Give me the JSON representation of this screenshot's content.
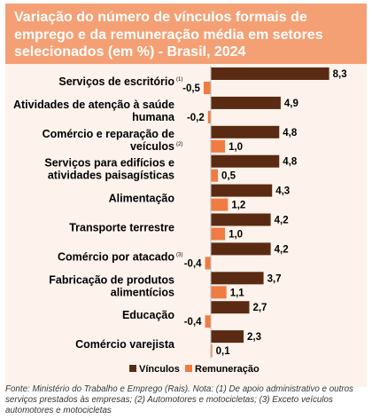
{
  "header": {
    "title": "Variação do número de vínculos formais de emprego e da remuneração média em setores selecionados (em %) - Brasil, 2024"
  },
  "colors": {
    "header_bg": "#f4a074",
    "chart_bg": "#fdf3ec",
    "vinculos": "#5b2a12",
    "remuneracao": "#f07b43"
  },
  "chart_data": {
    "type": "bar",
    "orientation": "horizontal",
    "categories": [
      {
        "lines": [
          "Serviços de escritório"
        ],
        "note": "(1)"
      },
      {
        "lines": [
          "Atividades de atenção à saúde",
          "humana"
        ],
        "note": ""
      },
      {
        "lines": [
          "Comércio e reparação de",
          "veículos"
        ],
        "note": "(2)"
      },
      {
        "lines": [
          "Serviços para edifícios e",
          "atividades paisagísticas"
        ],
        "note": ""
      },
      {
        "lines": [
          "Alimentação"
        ],
        "note": ""
      },
      {
        "lines": [
          "Transporte terrestre"
        ],
        "note": ""
      },
      {
        "lines": [
          "Comércio por atacado"
        ],
        "note": "(3)"
      },
      {
        "lines": [
          "Fabricação de produtos",
          "alimentícios"
        ],
        "note": ""
      },
      {
        "lines": [
          "Educação"
        ],
        "note": ""
      },
      {
        "lines": [
          "Comércio varejista"
        ],
        "note": ""
      }
    ],
    "series": [
      {
        "name": "Vínculos",
        "values": [
          8.3,
          4.9,
          4.8,
          4.8,
          4.3,
          4.2,
          4.2,
          3.7,
          2.7,
          2.3
        ],
        "labels": [
          "8,3",
          "4,9",
          "4,8",
          "4,8",
          "4,3",
          "4,2",
          "4,2",
          "3,7",
          "2,7",
          "2,3"
        ]
      },
      {
        "name": "Remuneração",
        "values": [
          -0.5,
          -0.2,
          1.0,
          0.5,
          1.2,
          1.0,
          -0.4,
          1.1,
          -0.4,
          0.1
        ],
        "labels": [
          "-0,5",
          "-0,2",
          "1,0",
          "0,5",
          "1,2",
          "1,0",
          "-0,4",
          "1,1",
          "-0,4",
          "0,1"
        ]
      }
    ],
    "legend": [
      "Vínculos",
      "Remuneração"
    ],
    "legend_position": "bottom-center"
  },
  "footnote": "Fonte: Ministério do Trabalho e Emprego (Rais). Nota: (1) De apoio administrativo e outros serviços prestados às empresas; (2) Automotores e motocicletas; (3) Exceto veículos automotores e motocicletas"
}
